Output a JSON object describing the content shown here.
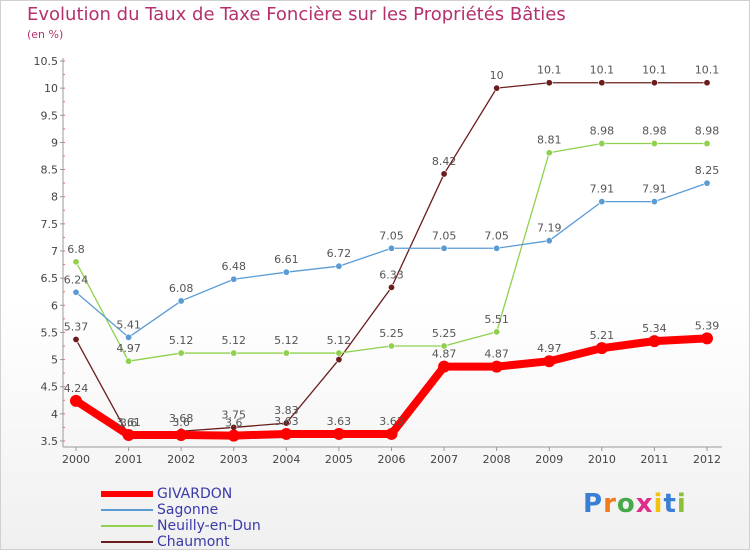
{
  "header": {
    "title": "Evolution du Taux de Taxe Foncière sur les Propriétés Bâties",
    "unit": "(en %)"
  },
  "logo": {
    "text": "Proxiti",
    "letter_colors": [
      "#3a7fd5",
      "#f07b1c",
      "#47a84a",
      "#e02d8c",
      "#f4c20d",
      "#3a7fd5",
      "#8bbf3a"
    ]
  },
  "chart_data": {
    "type": "line",
    "title": "Evolution du Taux de Taxe Foncière sur les Propriétés Bâties",
    "ylabel": "(en %)",
    "xlabel": "",
    "x": [
      "2000",
      "2001",
      "2002",
      "2003",
      "2004",
      "2005",
      "2006",
      "2007",
      "2008",
      "2009",
      "2010",
      "2011",
      "2012"
    ],
    "ylim": [
      3.5,
      10.5
    ],
    "yticks": [
      3.5,
      4,
      4.5,
      5,
      5.5,
      6,
      6.5,
      7,
      7.5,
      8,
      8.5,
      9,
      9.5,
      10,
      10.5
    ],
    "ytick_labels": [
      "3.5",
      "4",
      "4.5",
      "5",
      "5.5",
      "6",
      "6.5",
      "7",
      "7.5",
      "8",
      "8.5",
      "9",
      "9.5",
      "10",
      "10.5"
    ],
    "grid": false,
    "legend_position": "bottom-left",
    "series": [
      {
        "name": "GIVARDON",
        "color": "#ff0000",
        "values": [
          4.24,
          3.61,
          3.61,
          3.6,
          3.63,
          3.63,
          3.63,
          4.87,
          4.87,
          4.97,
          5.21,
          5.34,
          5.39
        ],
        "labels": [
          "4.24",
          "3.61",
          "3.6",
          "3.6",
          "3.63",
          "3.63",
          "3.63",
          "4.87",
          "4.87",
          "4.97",
          "5.21",
          "5.34",
          "5.39"
        ]
      },
      {
        "name": "Sagonne",
        "color": "#5b9bd5",
        "values": [
          6.24,
          5.41,
          6.08,
          6.48,
          6.61,
          6.72,
          7.05,
          7.05,
          7.05,
          7.19,
          7.91,
          7.91,
          8.25
        ],
        "labels": [
          "6.24",
          "5.41",
          "6.08",
          "6.48",
          "6.61",
          "6.72",
          "7.05",
          "7.05",
          "7.05",
          "7.19",
          "7.91",
          "7.91",
          "8.25"
        ]
      },
      {
        "name": "Neuilly-en-Dun",
        "color": "#8fd14f",
        "values": [
          6.8,
          4.97,
          5.12,
          5.12,
          5.12,
          5.12,
          5.25,
          5.25,
          5.51,
          8.81,
          8.98,
          8.98,
          8.98
        ],
        "labels": [
          "6.8",
          "4.97",
          "5.12",
          "5.12",
          "5.12",
          "5.12",
          "5.25",
          "5.25",
          "5.51",
          "8.81",
          "8.98",
          "8.98",
          "8.98"
        ]
      },
      {
        "name": "Chaumont",
        "color": "#6b1d1d",
        "values": [
          5.37,
          3.6,
          3.68,
          3.75,
          3.83,
          5.0,
          6.33,
          8.42,
          10,
          10.1,
          10.1,
          10.1,
          10.1
        ],
        "labels": [
          "5.37",
          "3.6",
          "3.68",
          "3.75",
          "3.83",
          "",
          "6.33",
          "8.42",
          "10",
          "10.1",
          "10.1",
          "10.1",
          "10.1"
        ]
      }
    ]
  }
}
